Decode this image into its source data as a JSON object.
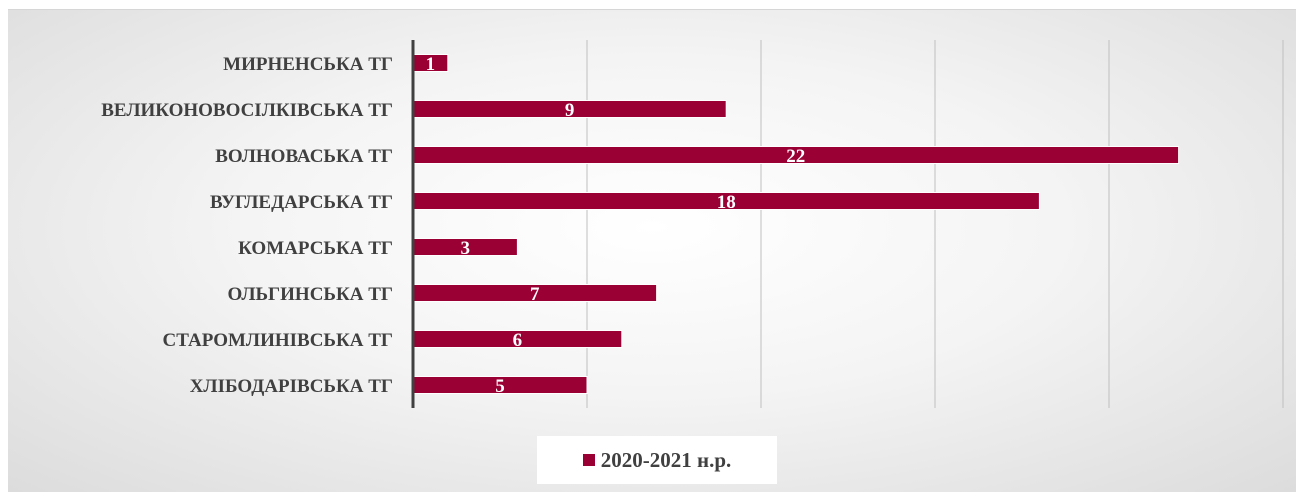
{
  "chart_data": {
    "type": "bar",
    "orientation": "horizontal",
    "categories": [
      "МИРНЕНСЬКА ТГ",
      "ВЕЛИКОНОВОСІЛКІВСЬКА ТГ",
      "ВОЛНОВАСЬКА ТГ",
      "ВУГЛЕДАРСЬКА ТГ",
      "КОМАРСЬКА ТГ",
      "ОЛЬГИНСЬКА ТГ",
      "СТАРОМЛИНІВСЬКА ТГ",
      "ХЛІБОДАРІВСЬКА ТГ"
    ],
    "series": [
      {
        "name": "2020-2021 н.р.",
        "values": [
          1,
          9,
          22,
          18,
          3,
          7,
          6,
          5
        ]
      }
    ],
    "xlim": [
      0,
      25
    ],
    "grid": true,
    "legend": "bottom",
    "data_labels": true,
    "colors": {
      "bar": "#9b0034",
      "bar_edge": "#ffffff",
      "gridline": "#bfbfbf",
      "axis": "#404040"
    }
  }
}
